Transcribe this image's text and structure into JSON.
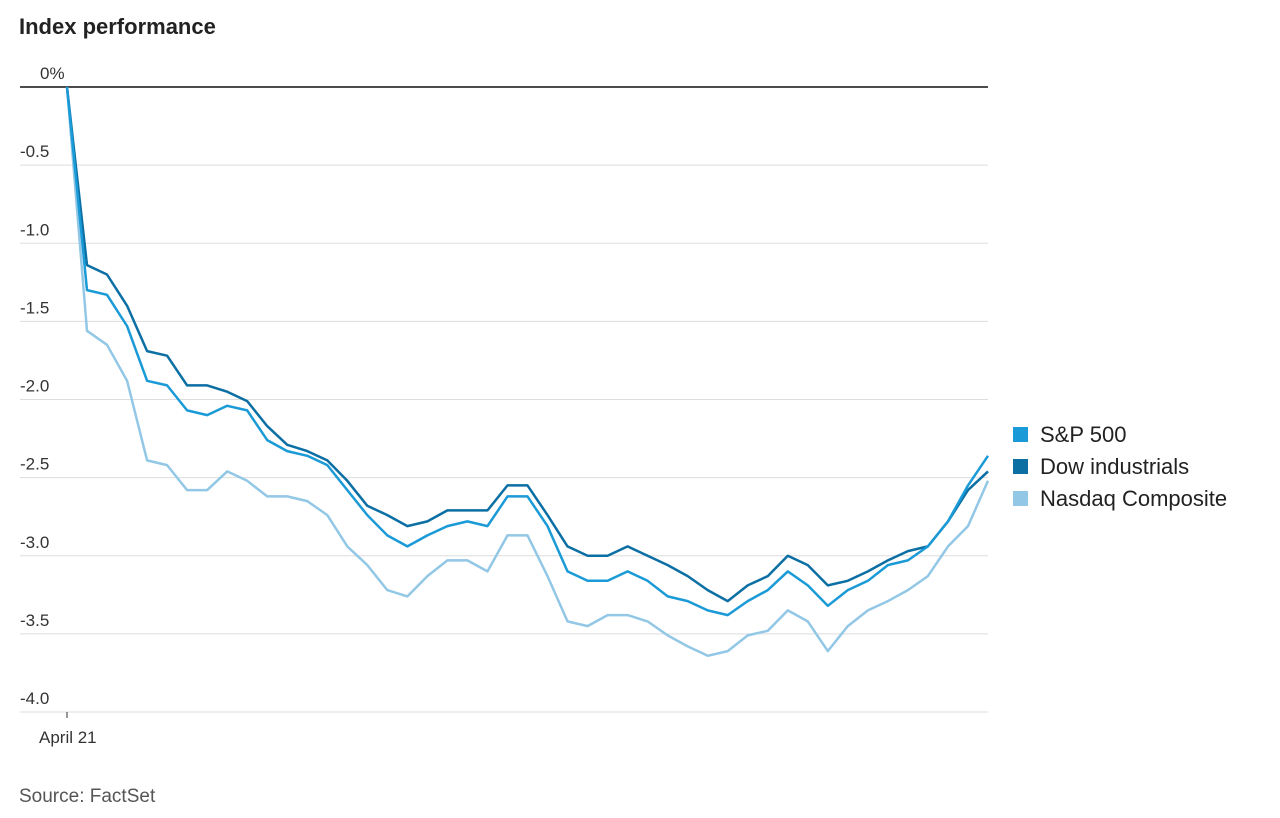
{
  "chart_data": {
    "type": "line",
    "title": "Index performance",
    "source": "Source: FactSet",
    "categories": [
      "April 21",
      null,
      null,
      null,
      null,
      null,
      null,
      null,
      null,
      null,
      null,
      null,
      null,
      null,
      null,
      null,
      null,
      null,
      null,
      null,
      null,
      null,
      null,
      null,
      null,
      null,
      null,
      null,
      null,
      null,
      null,
      null,
      null,
      null,
      null,
      null,
      null,
      null,
      null,
      null,
      null,
      null,
      null,
      null,
      null,
      null,
      null
    ],
    "series": [
      {
        "name": "S&P 500",
        "color": "#1a9ad6",
        "values": [
          0,
          -1.3,
          -1.33,
          -1.53,
          -1.88,
          -1.91,
          -2.07,
          -2.1,
          -2.04,
          -2.07,
          -2.26,
          -2.33,
          -2.36,
          -2.42,
          -2.58,
          -2.74,
          -2.87,
          -2.94,
          -2.87,
          -2.81,
          -2.78,
          -2.81,
          -2.62,
          -2.62,
          -2.81,
          -3.1,
          -3.16,
          -3.16,
          -3.1,
          -3.16,
          -3.26,
          -3.29,
          -3.35,
          -3.38,
          -3.29,
          -3.22,
          -3.1,
          -3.19,
          -3.32,
          -3.22,
          -3.16,
          -3.06,
          -3.03,
          -2.94,
          -2.78,
          -2.55,
          -2.36
        ]
      },
      {
        "name": "Dow industrials",
        "color": "#0b6fa4",
        "values": [
          0,
          -1.14,
          -1.2,
          -1.4,
          -1.69,
          -1.72,
          -1.91,
          -1.91,
          -1.95,
          -2.01,
          -2.17,
          -2.29,
          -2.33,
          -2.39,
          -2.52,
          -2.68,
          -2.74,
          -2.81,
          -2.78,
          -2.71,
          -2.71,
          -2.71,
          -2.55,
          -2.55,
          -2.74,
          -2.94,
          -3.0,
          -3.0,
          -2.94,
          -3.0,
          -3.06,
          -3.13,
          -3.22,
          -3.29,
          -3.19,
          -3.13,
          -3.0,
          -3.06,
          -3.19,
          -3.16,
          -3.1,
          -3.03,
          -2.97,
          -2.94,
          -2.78,
          -2.58,
          -2.46
        ]
      },
      {
        "name": "Nasdaq Composite",
        "color": "#92c7e6",
        "values": [
          0,
          -1.56,
          -1.65,
          -1.88,
          -2.39,
          -2.42,
          -2.58,
          -2.58,
          -2.46,
          -2.52,
          -2.62,
          -2.62,
          -2.65,
          -2.74,
          -2.94,
          -3.06,
          -3.22,
          -3.26,
          -3.13,
          -3.03,
          -3.03,
          -3.1,
          -2.87,
          -2.87,
          -3.13,
          -3.42,
          -3.45,
          -3.38,
          -3.38,
          -3.42,
          -3.51,
          -3.58,
          -3.64,
          -3.61,
          -3.51,
          -3.48,
          -3.35,
          -3.42,
          -3.61,
          -3.45,
          -3.35,
          -3.29,
          -3.22,
          -3.13,
          -2.94,
          -2.81,
          -2.52
        ]
      }
    ],
    "ylim": [
      -4,
      0
    ],
    "yticks": [
      {
        "value": 0,
        "label": "0%"
      },
      -0.5,
      {
        "value": -1,
        "label": "-1.0"
      },
      -1.5,
      {
        "value": -2,
        "label": "-2.0"
      },
      -2.5,
      {
        "value": -3,
        "label": "-3.0"
      },
      -3.5,
      {
        "value": -4,
        "label": "-4.0"
      }
    ],
    "grid": true,
    "legend": "right"
  }
}
